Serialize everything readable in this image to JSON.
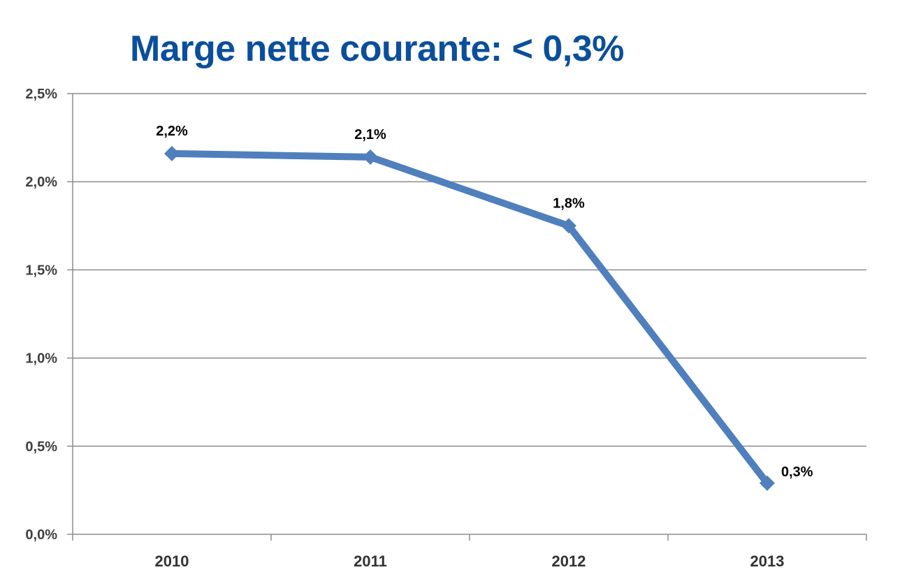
{
  "chart_data": {
    "type": "line",
    "title": "Marge nette courante: < 0,3%",
    "xlabel": "",
    "ylabel": "",
    "categories": [
      "2010",
      "2011",
      "2012",
      "2013"
    ],
    "series": [
      {
        "values": [
          2.16,
          2.14,
          1.75,
          0.29
        ],
        "data_labels": [
          "2,2%",
          "2,1%",
          "1,8%",
          "0,3%"
        ]
      }
    ],
    "ylim": [
      0,
      2.5
    ],
    "yticks": [
      0,
      0.5,
      1.0,
      1.5,
      2.0,
      2.5
    ],
    "ytick_labels": [
      "0,0%",
      "0,5%",
      "1,0%",
      "1,5%",
      "2,0%",
      "2,5%"
    ],
    "grid": true,
    "legend": "none",
    "colors": {
      "title": "#0b4f9c",
      "series": "#4f7fbd",
      "grid": "#8c8c8c",
      "axis": "#8c8c8c"
    }
  }
}
